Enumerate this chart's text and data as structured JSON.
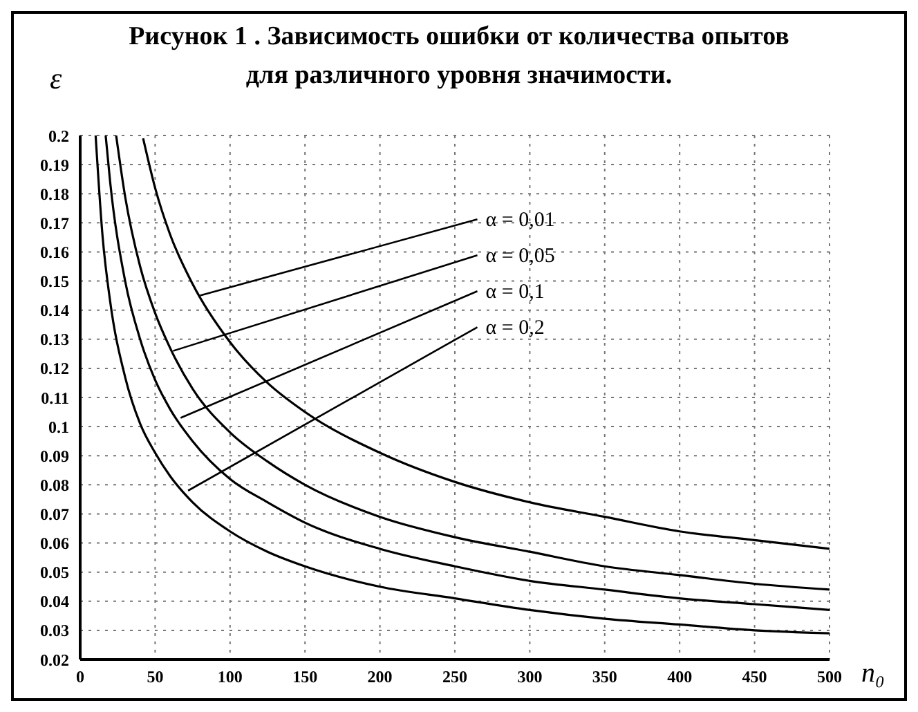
{
  "chart_data": {
    "type": "line",
    "title": "Рисунок 1 . Зависимость ошибки от количества  опытов",
    "subtitle": "для различного уровня значимости.",
    "xlabel": "n₀",
    "ylabel": "ε",
    "xlim": [
      0,
      500
    ],
    "xticks": [
      0,
      50,
      100,
      150,
      200,
      250,
      300,
      350,
      400,
      450,
      500
    ],
    "ylim": [
      0.02,
      0.2
    ],
    "yticks": [
      0.02,
      0.03,
      0.04,
      0.05,
      0.06,
      0.07,
      0.08,
      0.09,
      0.1,
      0.11,
      0.12,
      0.13,
      0.14,
      0.15,
      0.16,
      0.17,
      0.18,
      0.19,
      0.2
    ],
    "grid": true,
    "marker": "none",
    "line_style": "solid",
    "series": [
      {
        "color": "#000000",
        "x": [
          42,
          50,
          60,
          75,
          100,
          125,
          150,
          200,
          250,
          300,
          350,
          400,
          450,
          500
        ],
        "values": [
          0.199,
          0.182,
          0.166,
          0.149,
          0.129,
          0.115,
          0.105,
          0.091,
          0.081,
          0.074,
          0.069,
          0.064,
          0.061,
          0.058
        ]
      },
      {
        "color": "#000000",
        "x": [
          24,
          30,
          40,
          50,
          60,
          75,
          100,
          125,
          150,
          200,
          250,
          300,
          350,
          400,
          450,
          500
        ],
        "values": [
          0.2,
          0.179,
          0.155,
          0.139,
          0.127,
          0.113,
          0.098,
          0.088,
          0.08,
          0.069,
          0.062,
          0.057,
          0.052,
          0.049,
          0.046,
          0.044
        ]
      },
      {
        "color": "#000000",
        "x": [
          17,
          20,
          30,
          40,
          50,
          60,
          75,
          100,
          125,
          150,
          200,
          250,
          300,
          350,
          400,
          450,
          500
        ],
        "values": [
          0.2,
          0.184,
          0.15,
          0.13,
          0.116,
          0.106,
          0.095,
          0.082,
          0.074,
          0.067,
          0.058,
          0.052,
          0.047,
          0.044,
          0.041,
          0.039,
          0.037
        ]
      },
      {
        "color": "#000000",
        "x": [
          10.3,
          15,
          20,
          30,
          40,
          50,
          60,
          75,
          100,
          125,
          150,
          200,
          250,
          300,
          350,
          400,
          450,
          500
        ],
        "values": [
          0.2,
          0.165,
          0.143,
          0.117,
          0.101,
          0.091,
          0.083,
          0.074,
          0.064,
          0.057,
          0.052,
          0.045,
          0.041,
          0.037,
          0.034,
          0.032,
          0.03,
          0.029
        ]
      }
    ],
    "annotations": [
      {
        "text": "α = 0,01",
        "x": 80,
        "y": 0.145
      },
      {
        "text": "α = 0,05",
        "x": 62,
        "y": 0.126
      },
      {
        "text": "α = 0,1",
        "x": 67,
        "y": 0.103
      },
      {
        "text": "α = 0,2",
        "x": 72,
        "y": 0.078
      }
    ]
  }
}
